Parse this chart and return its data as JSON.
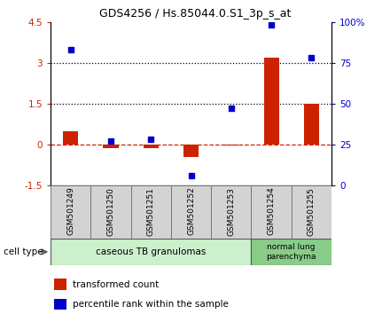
{
  "title": "GDS4256 / Hs.85044.0.S1_3p_s_at",
  "samples": [
    "GSM501249",
    "GSM501250",
    "GSM501251",
    "GSM501252",
    "GSM501253",
    "GSM501254",
    "GSM501255"
  ],
  "transformed_count": [
    0.5,
    -0.15,
    -0.12,
    -0.45,
    -0.05,
    3.2,
    1.5
  ],
  "percentile_rank_pct": [
    83,
    27,
    28,
    6,
    47,
    98,
    78
  ],
  "left_ylim": [
    -1.5,
    4.5
  ],
  "right_ylim": [
    0,
    100
  ],
  "left_yticks": [
    -1.5,
    0,
    1.5,
    3.0,
    4.5
  ],
  "right_yticks": [
    0,
    25,
    50,
    75,
    100
  ],
  "right_yticklabels": [
    "0",
    "25",
    "50",
    "75",
    "100%"
  ],
  "bar_color": "#cc2200",
  "dot_color": "#0000cc",
  "bg_color": "#ffffff",
  "cell_group1_label": "caseous TB granulomas",
  "cell_group1_count": 5,
  "cell_group1_color": "#ccf0cc",
  "cell_group2_label": "normal lung\nparenchyma",
  "cell_group2_count": 2,
  "cell_group2_color": "#88cc88",
  "legend_bar_label": "transformed count",
  "legend_dot_label": "percentile rank within the sample",
  "cell_type_label": "cell type",
  "axis_label_color_left": "#cc2200",
  "axis_label_color_right": "#0000cc"
}
